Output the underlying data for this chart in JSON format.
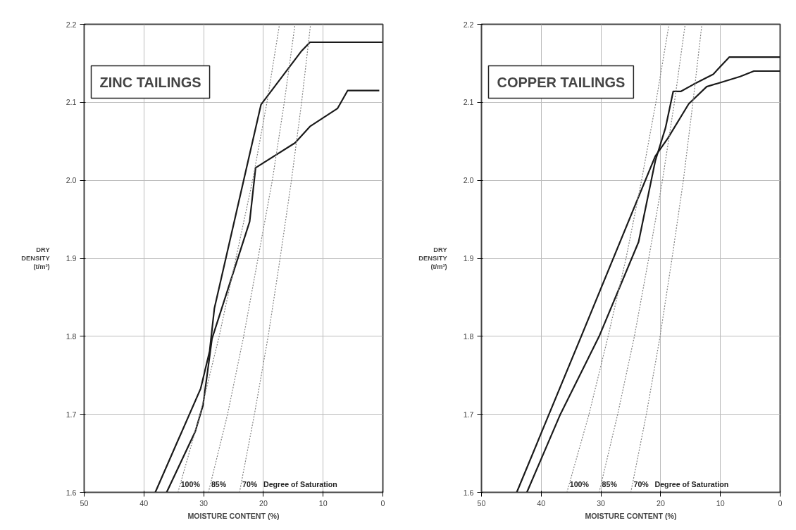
{
  "chart_data": [
    {
      "type": "line",
      "title": "ZINC TAILINGS",
      "xlabel": "MOISTURE CONTENT (%)",
      "ylabel": "DRY DENSITY (t/m³)",
      "xlim": [
        50,
        0
      ],
      "ylim": [
        1.6,
        2.2
      ],
      "xticks": [
        50,
        40,
        30,
        20,
        10,
        0
      ],
      "yticks": [
        1.6,
        1.7,
        1.8,
        1.9,
        {
          "value": 2,
          "label": "2.0"
        },
        2.1,
        2.2
      ],
      "grid": true,
      "series": [
        {
          "color": "#1a1a1a",
          "line_style": "solid",
          "x": [
            0,
            12.2,
            13.7,
            20.4,
            28.2,
            29.0,
            30.5,
            38.1
          ],
          "values": [
            2.177,
            2.177,
            2.165,
            2.097,
            1.836,
            1.781,
            1.733,
            1.6
          ]
        },
        {
          "color": "#1a1a1a",
          "line_style": "solid",
          "x": [
            0.6,
            5.9,
            7.6,
            12.2,
            14.7,
            21.3,
            22.3,
            28.6,
            30.1,
            31.4,
            36.2
          ],
          "values": [
            2.115,
            2.115,
            2.092,
            2.069,
            2.048,
            2.016,
            1.947,
            1.797,
            1.712,
            1.678,
            1.6
          ]
        },
        {
          "name": "100%",
          "color": "#808080",
          "line_style": "dotted",
          "x": [
            34.3,
            30.6,
            27.4,
            24.6,
            21.8,
            19.4,
            17.3
          ],
          "values": [
            1.6,
            1.7,
            1.8,
            1.9,
            2.0,
            2.1,
            2.2
          ]
        },
        {
          "name": "85%",
          "color": "#808080",
          "line_style": "dotted",
          "x": [
            29.2,
            26.0,
            23.3,
            20.9,
            18.5,
            16.5,
            14.7
          ],
          "values": [
            1.6,
            1.7,
            1.8,
            1.9,
            2.0,
            2.1,
            2.2
          ]
        },
        {
          "name": "70%",
          "color": "#808080",
          "line_style": "dotted",
          "x": [
            24.0,
            21.5,
            19.2,
            17.2,
            15.3,
            13.6,
            12.1
          ],
          "values": [
            1.6,
            1.7,
            1.8,
            1.9,
            2.0,
            2.1,
            2.2
          ]
        }
      ],
      "annotations": [
        "Degree of Saturation"
      ]
    },
    {
      "type": "line",
      "title": "COPPER TAILINGS",
      "xlabel": "MOISTURE CONTENT (%)",
      "ylabel": "DRY DENSITY (t/m³)",
      "xlim": [
        50,
        0
      ],
      "ylim": [
        1.6,
        2.2
      ],
      "xticks": [
        50,
        40,
        30,
        20,
        10,
        0
      ],
      "yticks": [
        1.6,
        1.7,
        1.8,
        1.9,
        {
          "value": 2,
          "label": "2.0"
        },
        2.1,
        2.2
      ],
      "grid": true,
      "series": [
        {
          "color": "#1a1a1a",
          "line_style": "solid",
          "x": [
            0,
            8.5,
            11.2,
            14.5,
            16.6,
            17.9,
            19.2,
            20.9,
            23.7,
            30.3,
            36.8,
            42.4
          ],
          "values": [
            2.158,
            2.158,
            2.136,
            2.123,
            2.114,
            2.114,
            2.067,
            2.025,
            1.921,
            1.8,
            1.7,
            1.6
          ]
        },
        {
          "color": "#1a1a1a",
          "line_style": "solid",
          "x": [
            0,
            4.4,
            6.7,
            12.3,
            15.3,
            18.8,
            20.9,
            33.3,
            38.7,
            44.1
          ],
          "values": [
            2.14,
            2.14,
            2.133,
            2.12,
            2.098,
            2.054,
            2.031,
            1.8,
            1.7,
            1.6
          ]
        },
        {
          "name": "100%",
          "color": "#808080",
          "line_style": "dotted",
          "x": [
            35.7,
            32.0,
            28.8,
            25.8,
            23.2,
            20.8,
            18.6
          ],
          "values": [
            1.6,
            1.7,
            1.8,
            1.9,
            2.0,
            2.1,
            2.2
          ]
        },
        {
          "name": "85%",
          "color": "#808080",
          "line_style": "dotted",
          "x": [
            30.3,
            27.2,
            24.4,
            22.0,
            19.7,
            17.7,
            15.9
          ],
          "values": [
            1.6,
            1.7,
            1.8,
            1.9,
            2.0,
            2.1,
            2.2
          ]
        },
        {
          "name": "70%",
          "color": "#808080",
          "line_style": "dotted",
          "x": [
            25.0,
            22.4,
            20.1,
            18.1,
            16.2,
            14.6,
            13.1
          ],
          "values": [
            1.6,
            1.7,
            1.8,
            1.9,
            2.0,
            2.1,
            2.2
          ]
        }
      ],
      "annotations": [
        "Degree of Saturation"
      ]
    }
  ]
}
